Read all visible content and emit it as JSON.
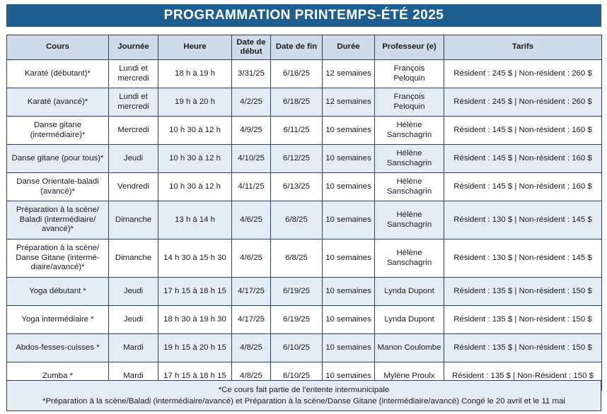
{
  "title": "PROGRAMMATION PRINTEMPS-ÉTÉ 2025",
  "headers": [
    "Cours",
    "Journée",
    "Heure",
    "Date de début",
    "Date de fin",
    "Durée",
    "Professeur (e)",
    "Tarifs"
  ],
  "rows": [
    {
      "cours": "Karaté (débutant)*",
      "journee": "Lundi et mercredi",
      "heure": "18 h à 19 h",
      "debut": "3/31/25",
      "fin": "6/16/25",
      "duree": "12 semaines",
      "prof": "François Peloquin",
      "tarifs": "Résident : 245 $ | Non-résident : 260 $"
    },
    {
      "cours": "Karaté (avancé)*",
      "journee": "Lundi et mercredi",
      "heure": "19 h à 20 h",
      "debut": "4/2/25",
      "fin": "6/18/25",
      "duree": "12 semaines",
      "prof": "François Peloquin",
      "tarifs": "Résident : 245 $ | Non-résident : 260 $"
    },
    {
      "cours": "Danse gitane (intermédiaire)*",
      "journee": "Mercredi",
      "heure": "10 h 30 à 12 h",
      "debut": "4/9/25",
      "fin": "6/11/25",
      "duree": "10 semaines",
      "prof": "Hélène Sanschagrin",
      "tarifs": "Résident : 145 $ | Non-résident : 160 $"
    },
    {
      "cours": "Danse gitane (pour tous)*",
      "journee": "Jeudi",
      "heure": "10 h 30 à 12 h",
      "debut": "4/10/25",
      "fin": "6/12/25",
      "duree": "10 semaines",
      "prof": "Hélène Sanschagrin",
      "tarifs": "Résident : 145 $ | Non-résident : 160 $"
    },
    {
      "cours": "Danse Orientale-baladi (avancé)*",
      "journee": "Vendredi",
      "heure": "10 h 30 à 12 h",
      "debut": "4/11/25",
      "fin": "6/13/25",
      "duree": "10 semaines",
      "prof": "Hélène Sanschagrin",
      "tarifs": "Résident : 145 $ | Non-résident : 160 $"
    },
    {
      "cours": "Préparation à la scène/ Baladi (intermédiaire/ avancé)*",
      "journee": "Dimanche",
      "heure": "13 h à 14 h",
      "debut": "4/6/25",
      "fin": "6/8/25",
      "duree": "10 semaines",
      "prof": "Hélène Sanschagrin",
      "tarifs": "Résident : 130 $ | Non-résident : 145 $"
    },
    {
      "cours": "Préparation à la scène/ Danse Gitane (intermé- diaire/avancé)*",
      "journee": "Dimanche",
      "heure": "14 h 30 à 15 h 30",
      "debut": "4/6/25",
      "fin": "6/8/25",
      "duree": "10 semaines",
      "prof": "Hélène Sanschagrin",
      "tarifs": "Résident : 130 $ | Non-résident : 145 $"
    },
    {
      "cours": "Yoga débutant *",
      "journee": "Jeudi",
      "heure": "17 h 15 à 18 h 15",
      "debut": "4/17/25",
      "fin": "6/19/25",
      "duree": "10 semaines",
      "prof": "Lynda Dupont",
      "tarifs": "Résident : 135 $ | Non-résident : 150 $"
    },
    {
      "cours": "Yoga intermédiaire *",
      "journee": "Jeudi",
      "heure": "18 h 30 à 19 h 30",
      "debut": "4/17/25",
      "fin": "6/19/25",
      "duree": "10 semaines",
      "prof": "Lynda Dupont",
      "tarifs": "Résident : 135 $ | Non-résident : 150 $"
    },
    {
      "cours": "Abdos-fesses-cuisses *",
      "journee": "Mardi",
      "heure": "19 h 15 à 20 h 15",
      "debut": "4/8/25",
      "fin": "6/10/25",
      "duree": "10 semaines",
      "prof": "Manon Coulombe",
      "tarifs": "Résident : 135 $ | Non-résident : 150 $"
    },
    {
      "cours": "Zumba *",
      "journee": "Mardi",
      "heure": "17 h 15 à 18 h 15",
      "debut": "4/8/25",
      "fin": "6/10/25",
      "duree": "10 semaines",
      "prof": "Mylène Proulx",
      "tarifs": "Résident : 135 $ | Non-Résident : 150 $"
    }
  ],
  "notes": [
    "*Ce cours fait partie de l'entente intermunicipale",
    "*Préparation à la scène/Baladi (intermédiaire/avancé) et Préparation à la scène/Danse Gitane (intermédiaire/avancé) Congé le 20 avril et le 11 mai"
  ],
  "colors": {
    "title_bg": "#1f5f8f",
    "header_bg": "#cfdbe9",
    "stripe_bg": "#e4ecf5",
    "border": "#2f3f55"
  }
}
